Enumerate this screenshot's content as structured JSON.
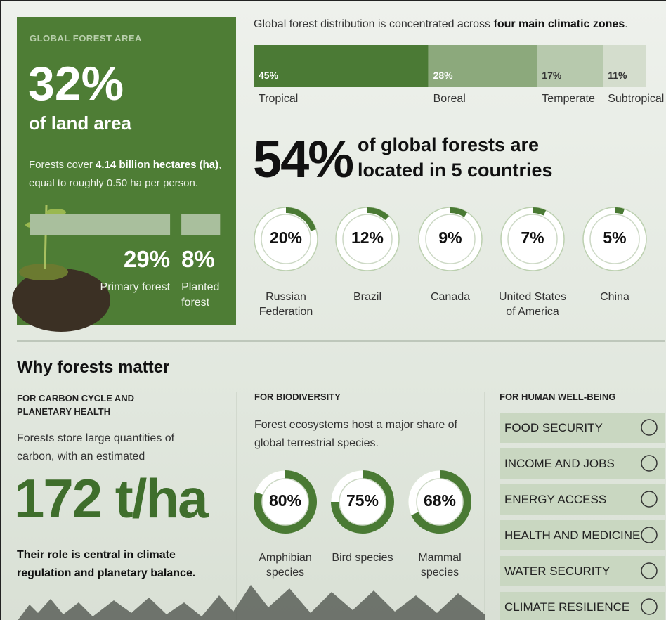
{
  "forest_area": {
    "heading": "GLOBAL FOREST AREA",
    "big": "32%",
    "big_sub": "of land area",
    "desc": [
      "Forests cover ",
      "4.14 billion hectares (ha)",
      ", equal to roughly 0.50 ha per person."
    ],
    "types": [
      {
        "value": 29,
        "value_label": "29%",
        "label": "Primary forest"
      },
      {
        "value": 8,
        "value_label": "8%",
        "label": "Planted forest"
      }
    ]
  },
  "zones": {
    "intro": [
      "Global forest distribution is concentrated across ",
      "four main climatic zones",
      "."
    ],
    "items": [
      {
        "name": "Tropical",
        "value": 45,
        "value_label": "45%",
        "color": "#4b7a35"
      },
      {
        "name": "Boreal",
        "value": 28,
        "value_label": "28%",
        "color": "#8ca97c"
      },
      {
        "name": "Temperate",
        "value": 17,
        "value_label": "17%",
        "color": "#b7c9ad"
      },
      {
        "name": "Subtropical",
        "value": 11,
        "value_label": "11%",
        "color": "#d4ddcd"
      }
    ]
  },
  "countries": {
    "big": "54%",
    "text": "of global forests are located in 5 countries",
    "items": [
      {
        "name": "Russian Federation",
        "value": 20,
        "value_label": "20%"
      },
      {
        "name": "Brazil",
        "value": 12,
        "value_label": "12%"
      },
      {
        "name": "Canada",
        "value": 9,
        "value_label": "9%"
      },
      {
        "name": "United States of America",
        "value": 7,
        "value_label": "7%"
      },
      {
        "name": "China",
        "value": 5,
        "value_label": "5%"
      }
    ]
  },
  "why": {
    "title": "Why forests matter",
    "carbon": {
      "heading": "FOR CARBON CYCLE AND PLANETARY HEALTH",
      "text": "Forests store large quantities of carbon, with an estimated",
      "big": "172 t/ha",
      "footer": "Their role is central in climate regulation and planetary balance."
    },
    "biodiversity": {
      "heading": "FOR BIODIVERSITY",
      "text": "Forest ecosystems host a major share of global terrestrial species.",
      "items": [
        {
          "name": "Amphibian species",
          "value": 80,
          "value_label": "80%"
        },
        {
          "name": "Bird species",
          "value": 75,
          "value_label": "75%"
        },
        {
          "name": "Mammal species",
          "value": 68,
          "value_label": "68%"
        }
      ]
    },
    "wellbeing": {
      "heading": "FOR HUMAN WELL-BEING",
      "items": [
        "FOOD SECURITY",
        "INCOME AND JOBS",
        "ENERGY ACCESS",
        "HEALTH AND MEDICINE",
        "WATER SECURITY",
        "CLIMATE RESILIENCE"
      ]
    }
  }
}
